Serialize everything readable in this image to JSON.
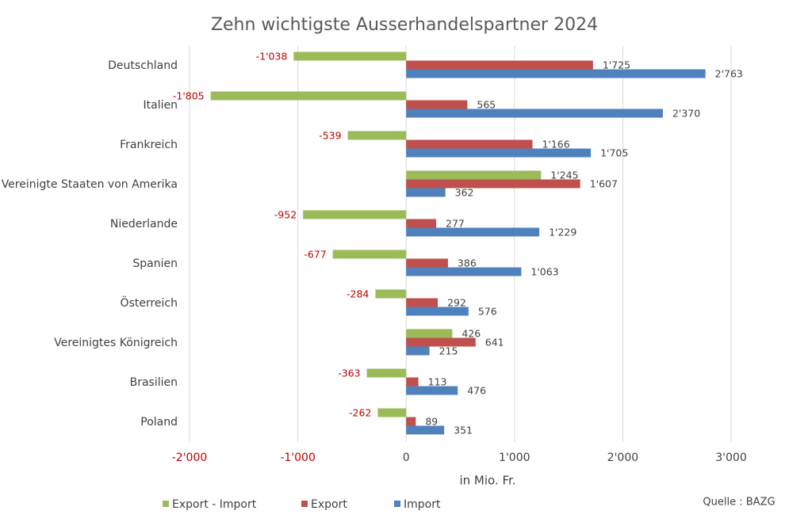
{
  "chart_data": {
    "type": "bar",
    "orientation": "horizontal",
    "title": "Zehn wichtigste Ausserhandelspartner 2024",
    "xlabel": "in Mio. Fr.",
    "source": "Quelle : BAZG",
    "categories": [
      "Deutschland",
      "Italien",
      "Frankreich",
      "Vereinigte Staaten von Amerika",
      "Niederlande",
      "Spanien",
      "Österreich",
      "Vereinigtes Königreich",
      "Brasilien",
      "Poland"
    ],
    "series": [
      {
        "name": "Export - Import",
        "color": "#9bbb59",
        "values": [
          -1038,
          -1805,
          -539,
          1245,
          -952,
          -677,
          -284,
          426,
          -363,
          -262
        ],
        "value_labels": [
          "-1'038",
          "-1'805",
          "-539",
          "1'245",
          "-952",
          "-677",
          "-284",
          "426",
          "-363",
          "-262"
        ]
      },
      {
        "name": "Export",
        "color": "#c0504d",
        "values": [
          1725,
          565,
          1166,
          1607,
          277,
          386,
          292,
          641,
          113,
          89
        ],
        "value_labels": [
          "1'725",
          "565",
          "1'166",
          "1'607",
          "277",
          "386",
          "292",
          "641",
          "113",
          "89"
        ]
      },
      {
        "name": "Import",
        "color": "#4f81bd",
        "values": [
          2763,
          2370,
          1705,
          362,
          1229,
          1063,
          576,
          215,
          476,
          351
        ],
        "value_labels": [
          "2'763",
          "2'370",
          "1'705",
          "362",
          "1'229",
          "1'063",
          "576",
          "215",
          "476",
          "351"
        ]
      }
    ],
    "xlim": [
      -2000,
      3000
    ],
    "xticks": [
      {
        "value": -2000,
        "label": "-2'000"
      },
      {
        "value": -1000,
        "label": "-1'000"
      },
      0,
      {
        "value": 1000,
        "label": "1'000"
      },
      {
        "value": 2000,
        "label": "2'000"
      },
      {
        "value": 3000,
        "label": "3'000"
      }
    ],
    "grid": true,
    "legend": "bottom",
    "negative_color": "#c00000"
  }
}
